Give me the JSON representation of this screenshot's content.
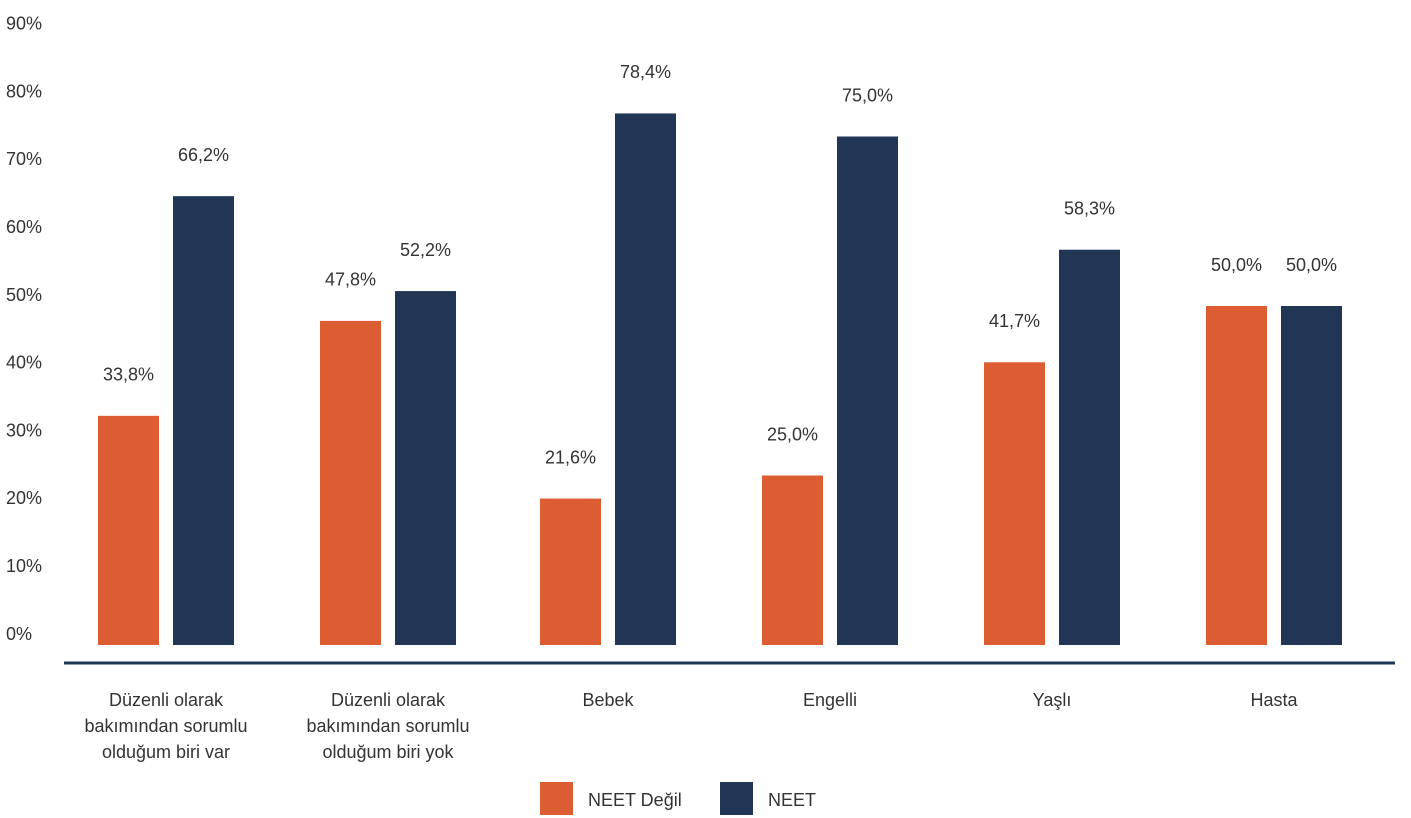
{
  "chart_data": {
    "type": "bar",
    "categories": [
      [
        "Düzenli olarak",
        "bakımından  sorumlu",
        "olduğum biri var"
      ],
      [
        "Düzenli olarak",
        "bakımından  sorumlu",
        "olduğum biri yok"
      ],
      [
        "Bebek"
      ],
      [
        "Engelli"
      ],
      [
        "Yaşlı"
      ],
      [
        "Hasta"
      ]
    ],
    "series": [
      {
        "name": "NEET Değil",
        "color": "#DC5D32",
        "values": [
          33.8,
          47.8,
          21.6,
          25.0,
          41.7,
          50.0
        ],
        "labels": [
          "33,8%",
          "47,8%",
          "21,6%",
          "25,0%",
          "41,7%",
          "50,0%"
        ]
      },
      {
        "name": "NEET",
        "color": "#213554",
        "values": [
          66.2,
          52.2,
          78.4,
          75.0,
          58.3,
          50.0
        ],
        "labels": [
          "66,2%",
          "52,2%",
          "78,4%",
          "75,0%",
          "58,3%",
          "50,0%"
        ]
      }
    ],
    "ylim": [
      0,
      90
    ],
    "yticks": [
      "0%",
      "10%",
      "20%",
      "30%",
      "40%",
      "50%",
      "60%",
      "70%",
      "80%",
      "90%"
    ],
    "axis_color": "#213554",
    "legend_position": "bottom",
    "grid": false,
    "title": "",
    "xlabel": "",
    "ylabel": ""
  }
}
